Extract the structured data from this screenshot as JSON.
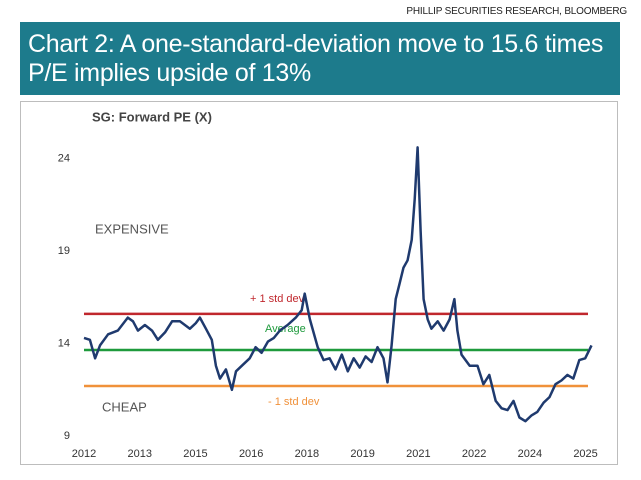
{
  "source": "PHILLIP SECURITIES RESEARCH, BLOOMBERG",
  "chart_data": {
    "type": "line",
    "title": "Chart 2: A one-standard-deviation move to 15.6 times P/E implies upside of 13%",
    "subtitle": "SG: Forward PE (X)",
    "annotations": [
      "EXPENSIVE",
      "CHEAP"
    ],
    "x": [
      2012.0,
      2012.16,
      2012.3,
      2012.43,
      2012.65,
      2012.91,
      2013.18,
      2013.32,
      2013.45,
      2013.64,
      2013.83,
      2013.99,
      2014.18,
      2014.37,
      2014.58,
      2014.85,
      2015.01,
      2015.12,
      2015.28,
      2015.44,
      2015.55,
      2015.66,
      2015.82,
      2015.98,
      2016.09,
      2016.25,
      2016.46,
      2016.62,
      2016.78,
      2016.95,
      2017.11,
      2017.27,
      2017.48,
      2017.7,
      2017.86,
      2017.94,
      2018.08,
      2018.29,
      2018.45,
      2018.61,
      2018.77,
      2018.94,
      2019.1,
      2019.26,
      2019.42,
      2019.58,
      2019.74,
      2019.9,
      2020.06,
      2020.17,
      2020.28,
      2020.39,
      2020.49,
      2020.6,
      2020.71,
      2020.82,
      2020.9,
      2020.98,
      2021.06,
      2021.14,
      2021.25,
      2021.35,
      2021.52,
      2021.68,
      2021.84,
      2021.97,
      2022.05,
      2022.16,
      2022.38,
      2022.59,
      2022.75,
      2022.91,
      2023.08,
      2023.24,
      2023.4,
      2023.56,
      2023.72,
      2023.88,
      2024.04,
      2024.2,
      2024.37,
      2024.53,
      2024.69,
      2024.85,
      2025.01,
      2025.17,
      2025.33,
      2025.49,
      2025.66
    ],
    "series": [
      {
        "color": "#1f3a6e",
        "values": [
          14.3,
          14.2,
          13.2,
          13.9,
          14.5,
          14.7,
          15.4,
          15.2,
          14.7,
          15.0,
          14.7,
          14.2,
          14.6,
          15.2,
          15.2,
          14.8,
          15.1,
          15.4,
          14.8,
          14.2,
          12.8,
          12.1,
          12.6,
          11.5,
          12.5,
          12.8,
          13.2,
          13.8,
          13.5,
          14.1,
          14.3,
          14.7,
          15.0,
          15.4,
          15.8,
          16.7,
          15.3,
          13.8,
          13.1,
          13.2,
          12.6,
          13.4,
          12.5,
          13.2,
          12.7,
          13.3,
          13.0,
          13.8,
          13.2,
          11.9,
          13.9,
          16.4,
          17.2,
          18.1,
          18.5,
          19.6,
          21.8,
          24.6,
          20.1,
          16.4,
          15.3,
          14.8,
          15.2,
          14.7,
          15.3,
          16.4,
          14.7,
          13.4,
          12.8,
          12.8,
          11.8,
          12.3,
          10.9,
          10.5,
          10.4,
          10.9,
          10.0,
          9.8,
          10.1,
          10.3,
          10.8,
          11.1,
          11.8,
          12.0,
          12.3,
          12.1,
          13.1,
          13.2,
          13.9
        ]
      }
    ],
    "reference_lines": [
      {
        "name": "+ 1 std dev",
        "value": 15.6,
        "color": "#c0272d"
      },
      {
        "name": "Average",
        "value": 13.65,
        "color": "#1e9a3c"
      },
      {
        "name": "- 1 std dev",
        "value": 11.7,
        "color": "#f0913a"
      }
    ],
    "xlim": [
      2012,
      2025.7
    ],
    "xticks": [
      2012,
      {
        "value": 2013.5,
        "label": "2013"
      },
      2015,
      {
        "value": 2016.5,
        "label": "2016"
      },
      2018,
      {
        "value": 2019.5,
        "label": "2019"
      },
      2021,
      {
        "value": 2022.5,
        "label": "2022"
      },
      2024,
      {
        "value": 2025.5,
        "label": "2025"
      }
    ],
    "ylim": [
      9,
      25
    ],
    "yticks": [
      9,
      14,
      19,
      24
    ],
    "grid": false
  }
}
